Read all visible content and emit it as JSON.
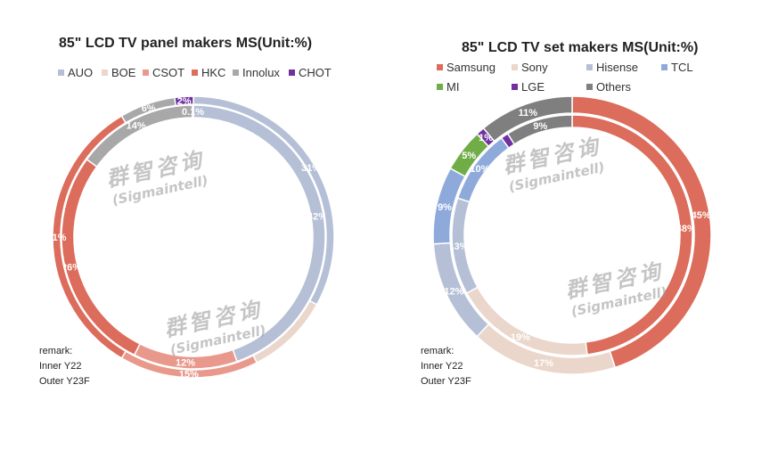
{
  "colors": {
    "AUO": "#b5c0d6",
    "BOE": "#ead6cb",
    "CSOT": "#e9998c",
    "HKC": "#dc6c5b",
    "Innolux": "#a8a8a8",
    "CHOT": "#7030a0",
    "Samsung": "#dc6c5b",
    "Sony": "#ead6cb",
    "Hisense": "#b5c0d6",
    "TCL": "#8eaadb",
    "MI": "#70ad47",
    "LGE": "#7030a0",
    "Others": "#7f7f7f"
  },
  "watermark": {
    "main": "群智咨询",
    "sub": "(Sigmaintell)"
  },
  "chart_data": [
    {
      "type": "donut",
      "title": "85\" LCD TV panel makers MS(Unit:%)",
      "legend": [
        "AUO",
        "BOE",
        "CSOT",
        "HKC",
        "Innolux",
        "CHOT"
      ],
      "legend_position": "top",
      "series": [
        {
          "name": "Y22",
          "ring": "inner",
          "values": [
            42,
            0,
            12,
            26,
            14,
            0.1
          ],
          "labels": [
            "42%",
            "",
            "12%",
            "26%",
            "14%",
            "0.1%"
          ]
        },
        {
          "name": "Y23F",
          "ring": "outer",
          "values": [
            31,
            9,
            15,
            31,
            6,
            2
          ],
          "labels": [
            "31%",
            "",
            "15%",
            "31%",
            "6%",
            "2%"
          ]
        }
      ],
      "remark": [
        "remark:",
        "Inner Y22",
        "Outer Y23F"
      ]
    },
    {
      "type": "donut",
      "title": "85\" LCD TV set makers MS(Unit:%)",
      "legend": [
        "Samsung",
        "Sony",
        "Hisense",
        "TCL",
        "MI",
        "LGE",
        "Others"
      ],
      "legend_position": "top",
      "series": [
        {
          "name": "Y22",
          "ring": "inner",
          "values": [
            48,
            19,
            13,
            10,
            0,
            1,
            9
          ],
          "labels": [
            "48%",
            "19%",
            "13%",
            "10%",
            "",
            "",
            "9%"
          ]
        },
        {
          "name": "Y23F",
          "ring": "outer",
          "values": [
            45,
            17,
            12,
            9,
            5,
            1,
            11
          ],
          "labels": [
            "45%",
            "17%",
            "12%",
            "9%",
            "5%",
            "1%",
            "11%"
          ]
        }
      ],
      "remark": [
        "remark:",
        "Inner Y22",
        "Outer Y23F"
      ]
    }
  ]
}
